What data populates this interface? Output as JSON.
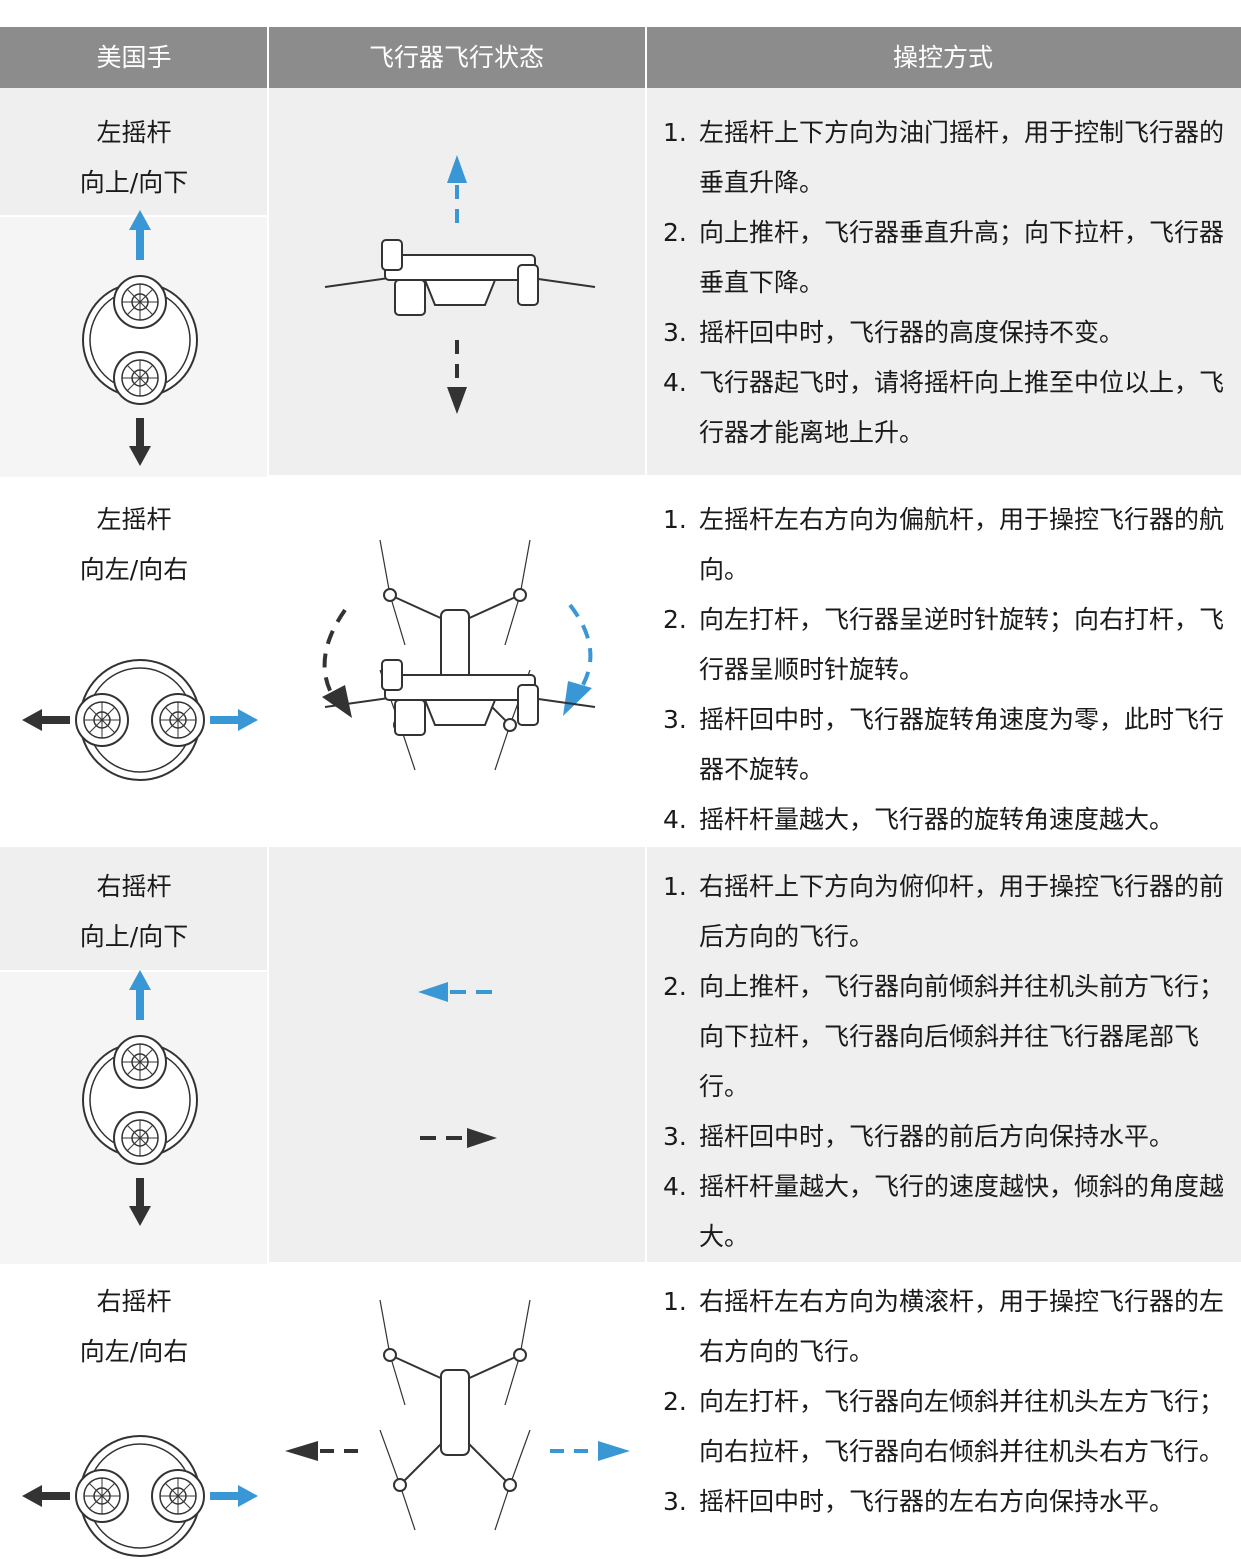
{
  "header": [
    "美国手",
    "飞行器飞行状态",
    "操控方式"
  ],
  "rows": [
    {
      "stick": [
        "左摇杆",
        "向上/向下"
      ],
      "items": [
        {
          "num": "1.",
          "text": "左摇杆上下方向为油门摇杆，用于控制飞行器的垂直升降。"
        },
        {
          "num": "2.",
          "text": "向上推杆，飞行器垂直升高；向下拉杆，飞行器垂直下降。"
        },
        {
          "num": "3.",
          "text": "摇杆回中时，飞行器的高度保持不变。"
        },
        {
          "num": "4.",
          "text": "飞行器起飞时，请将摇杆向上推至中位以上，飞行器才能离地上升。"
        }
      ]
    },
    {
      "stick": [
        "左摇杆",
        "向左/向右"
      ],
      "items": [
        {
          "num": "1.",
          "text": "左摇杆左右方向为偏航杆，用于操控飞行器的航向。"
        },
        {
          "num": "2.",
          "text": "向左打杆，飞行器呈逆时针旋转；向右打杆，飞行器呈顺时针旋转。"
        },
        {
          "num": "3.",
          "text": "摇杆回中时，飞行器旋转角速度为零，此时飞行器不旋转。"
        },
        {
          "num": "4.",
          "text": "摇杆杆量越大，飞行器的旋转角速度越大。"
        }
      ]
    },
    {
      "stick": [
        "右摇杆",
        "向上/向下"
      ],
      "items": [
        {
          "num": "1.",
          "text": "右摇杆上下方向为俯仰杆，用于操控飞行器的前后方向的飞行。"
        },
        {
          "num": "2.",
          "text": "向上推杆，飞行器向前倾斜并往机头前方飞行；向下拉杆，飞行器向后倾斜并往飞行器尾部飞行。"
        },
        {
          "num": "3.",
          "text": "摇杆回中时，飞行器的前后方向保持水平。"
        },
        {
          "num": "4.",
          "text": "摇杆杆量越大，飞行的速度越快，倾斜的角度越大。"
        }
      ]
    },
    {
      "stick": [
        "右摇杆",
        "向左/向右"
      ],
      "items": [
        {
          "num": "1.",
          "text": "右摇杆左右方向为横滚杆，用于操控飞行器的左右方向的飞行。"
        },
        {
          "num": "2.",
          "text": "向左打杆，飞行器向左倾斜并往机头左方飞行；向右拉杆，飞行器向右倾斜并往机头右方飞行。"
        },
        {
          "num": "3.",
          "text": "摇杆回中时，飞行器的左右方向保持水平。"
        }
      ]
    }
  ]
}
